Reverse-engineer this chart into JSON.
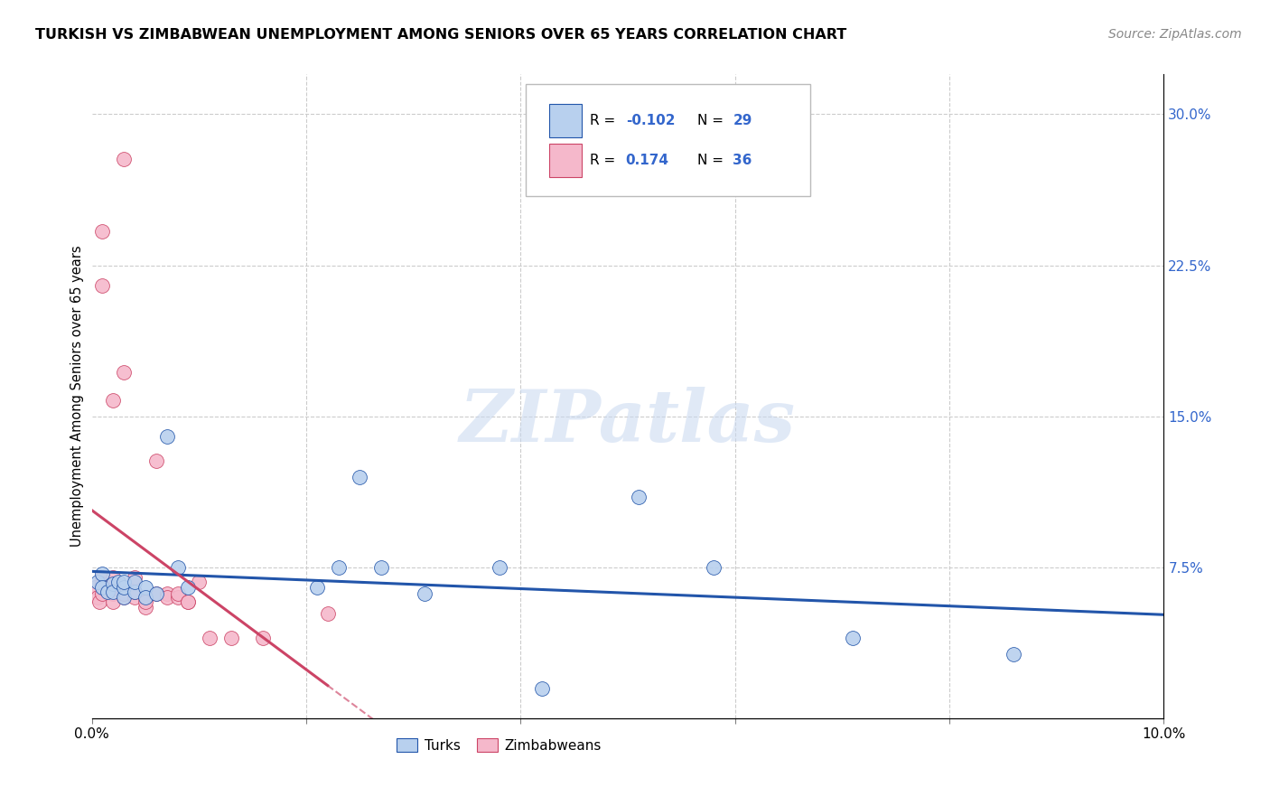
{
  "title": "TURKISH VS ZIMBABWEAN UNEMPLOYMENT AMONG SENIORS OVER 65 YEARS CORRELATION CHART",
  "source": "Source: ZipAtlas.com",
  "ylabel": "Unemployment Among Seniors over 65 years",
  "xlim": [
    0.0,
    0.1
  ],
  "ylim": [
    0.0,
    0.32
  ],
  "xticks": [
    0.0,
    0.02,
    0.04,
    0.06,
    0.08,
    0.1
  ],
  "xtick_labels": [
    "0.0%",
    "",
    "",
    "",
    "",
    "10.0%"
  ],
  "yticks_right": [
    0.075,
    0.15,
    0.225,
    0.3
  ],
  "ytick_right_labels": [
    "7.5%",
    "15.0%",
    "22.5%",
    "30.0%"
  ],
  "background_color": "#ffffff",
  "grid_color": "#cccccc",
  "turks_color": "#b8d0ee",
  "zimbabweans_color": "#f5b8cb",
  "turks_line_color": "#2255aa",
  "zimbabweans_line_color": "#cc4466",
  "turks_r": -0.102,
  "turks_n": 29,
  "zimbabweans_r": 0.174,
  "zimbabweans_n": 36,
  "watermark": "ZIPatlas",
  "legend_color": "#3366cc",
  "turks_x": [
    0.0005,
    0.001,
    0.001,
    0.0015,
    0.002,
    0.002,
    0.0025,
    0.003,
    0.003,
    0.003,
    0.004,
    0.004,
    0.005,
    0.005,
    0.006,
    0.007,
    0.008,
    0.009,
    0.021,
    0.023,
    0.025,
    0.027,
    0.031,
    0.038,
    0.042,
    0.051,
    0.058,
    0.071,
    0.086
  ],
  "turks_y": [
    0.068,
    0.072,
    0.065,
    0.063,
    0.067,
    0.063,
    0.068,
    0.06,
    0.065,
    0.068,
    0.063,
    0.068,
    0.065,
    0.06,
    0.062,
    0.14,
    0.075,
    0.065,
    0.065,
    0.075,
    0.12,
    0.075,
    0.062,
    0.075,
    0.015,
    0.11,
    0.075,
    0.04,
    0.032
  ],
  "zimbabweans_x": [
    0.0003,
    0.0005,
    0.0007,
    0.001,
    0.001,
    0.001,
    0.001,
    0.001,
    0.002,
    0.002,
    0.002,
    0.002,
    0.002,
    0.003,
    0.003,
    0.003,
    0.003,
    0.004,
    0.004,
    0.004,
    0.005,
    0.005,
    0.005,
    0.006,
    0.006,
    0.007,
    0.007,
    0.008,
    0.008,
    0.009,
    0.009,
    0.01,
    0.011,
    0.013,
    0.016,
    0.022
  ],
  "zimbabweans_y": [
    0.065,
    0.06,
    0.058,
    0.242,
    0.215,
    0.07,
    0.067,
    0.062,
    0.158,
    0.065,
    0.07,
    0.062,
    0.058,
    0.172,
    0.278,
    0.06,
    0.062,
    0.06,
    0.07,
    0.063,
    0.06,
    0.055,
    0.058,
    0.128,
    0.062,
    0.062,
    0.06,
    0.06,
    0.062,
    0.058,
    0.058,
    0.068,
    0.04,
    0.04,
    0.04,
    0.052
  ]
}
